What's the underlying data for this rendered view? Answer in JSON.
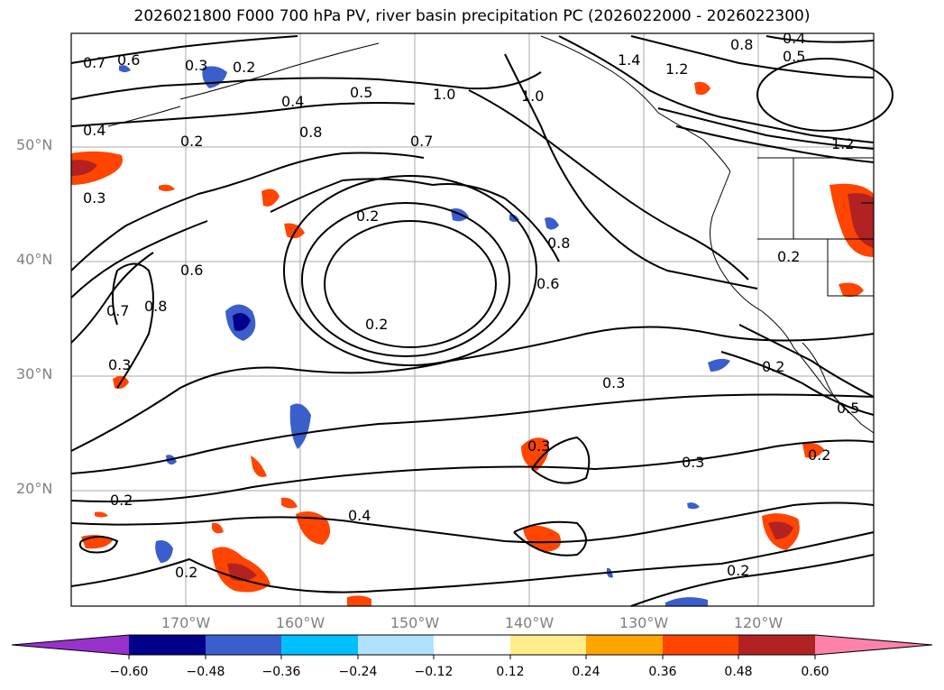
{
  "title": "2026021800 F000 700 hPa PV, river basin precipitation PC (2026022000 - 2026022300)",
  "lat_labels": [
    "50°N",
    "40°N",
    "30°N",
    "20°N"
  ],
  "lon_labels": [
    "170°W",
    "160°W",
    "150°W",
    "140°W",
    "130°W",
    "120°W"
  ],
  "contour_labels": [
    "0.7",
    "0.6",
    "0.3",
    "0.2",
    "0.5",
    "0.4",
    "0.8",
    "1.0",
    "1.4",
    "1.2",
    "0.2",
    "0.4",
    "0.3",
    "0.2",
    "0.7",
    "0.6",
    "0.8",
    "0.7",
    "0.2",
    "0.8",
    "0.6",
    "0.3",
    "0.2",
    "0.2",
    "0.3",
    "0.3",
    "0.2",
    "0.4",
    "0.3",
    "0.2",
    "0.2",
    "0.2",
    "1.0",
    "0.8",
    "0.4",
    "0.5",
    "1.2",
    "0.5"
  ],
  "colorbar": {
    "ticks": [
      "−0.60",
      "−0.48",
      "−0.36",
      "−0.24",
      "−0.12",
      "0.12",
      "0.24",
      "0.36",
      "0.48",
      "0.60"
    ],
    "colors": [
      "#9932cc",
      "#00008b",
      "#3a5fcd",
      "#00bfff",
      "#b0e2ff",
      "#ffffff",
      "#ffec8b",
      "#ffa500",
      "#ff4500",
      "#b22222",
      "#ff82ab"
    ]
  }
}
